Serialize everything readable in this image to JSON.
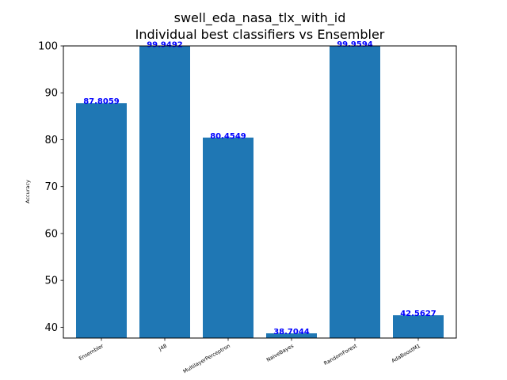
{
  "chart_data": {
    "type": "bar",
    "title": "swell_eda_nasa_tlx_with_id",
    "subtitle": "Individual best classifiers vs Ensembler",
    "xlabel": "",
    "ylabel": "Accuracy",
    "categories": [
      "Ensembler",
      "J48",
      "MultilayerPerceptron",
      "NaiveBayes",
      "RandomForest",
      "AdaBoostM1"
    ],
    "values": [
      87.8059,
      99.9492,
      80.4549,
      38.7044,
      99.9594,
      42.5627
    ],
    "data_labels": [
      "87.8059",
      "99.9492",
      "80.4549",
      "38.7044",
      "99.9594",
      "42.5627"
    ],
    "ylim": [
      37.7,
      100
    ],
    "yticks": [
      40,
      50,
      60,
      70,
      80,
      90,
      100
    ],
    "ytick_labels": [
      "40",
      "50",
      "60",
      "70",
      "80",
      "90",
      "100"
    ],
    "grid": false,
    "bar_color": "#1f77b4",
    "label_color": "#0000ff"
  }
}
